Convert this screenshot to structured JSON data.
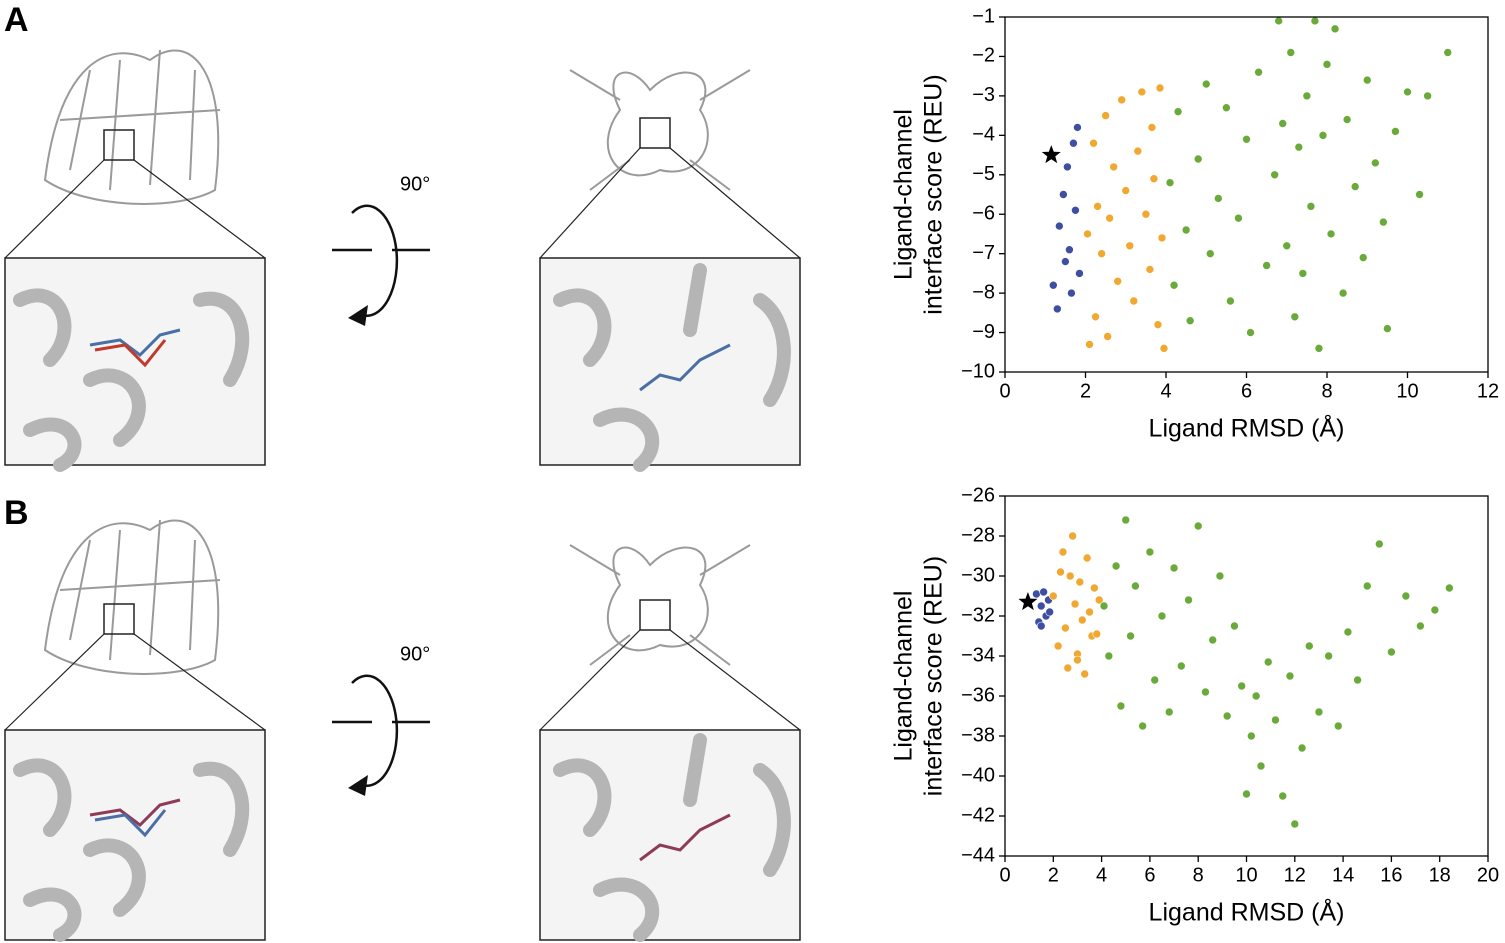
{
  "figure": {
    "panels": [
      {
        "label": "A",
        "rotation": "90°"
      },
      {
        "label": "B",
        "rotation": "90°"
      }
    ]
  },
  "chart_data": [
    {
      "type": "scatter",
      "xlabel": "Ligand RMSD (Å)",
      "ylabel": [
        "Ligand-channel",
        "interface score (REU)"
      ],
      "xlim": [
        0,
        12
      ],
      "ylim": [
        -10,
        -1
      ],
      "xticks": [
        0,
        2,
        4,
        6,
        8,
        10,
        12
      ],
      "yticks": [
        {
          "value": -1,
          "label": "−1"
        },
        {
          "value": -2,
          "label": "−2"
        },
        {
          "value": -3,
          "label": "−3"
        },
        {
          "value": -4,
          "label": "−4"
        },
        {
          "value": -5,
          "label": "−5"
        },
        {
          "value": -6,
          "label": "−6"
        },
        {
          "value": -7,
          "label": "−7"
        },
        {
          "value": -8,
          "label": "−8"
        },
        {
          "value": -9,
          "label": "−9"
        },
        {
          "value": -10,
          "label": "−10"
        }
      ],
      "series": [
        {
          "color": "#3d4ea3",
          "x": [
            1.2,
            1.3,
            1.35,
            1.45,
            1.5,
            1.55,
            1.6,
            1.65,
            1.7,
            1.75,
            1.8,
            1.85
          ],
          "values": [
            -7.8,
            -8.4,
            -6.3,
            -5.5,
            -7.2,
            -4.8,
            -6.9,
            -8.0,
            -4.2,
            -5.9,
            -3.8,
            -7.5
          ]
        },
        {
          "color": "#f0a830",
          "x": [
            2.05,
            2.1,
            2.2,
            2.25,
            2.3,
            2.4,
            2.5,
            2.55,
            2.6,
            2.7,
            2.8,
            2.9,
            3.0,
            3.1,
            3.2,
            3.3,
            3.4,
            3.5,
            3.6,
            3.65,
            3.7,
            3.8,
            3.85,
            3.9,
            3.95
          ],
          "values": [
            -6.5,
            -9.3,
            -4.2,
            -8.6,
            -5.8,
            -7.0,
            -3.5,
            -9.1,
            -6.1,
            -4.8,
            -7.7,
            -3.1,
            -5.4,
            -6.8,
            -8.2,
            -4.4,
            -2.9,
            -6.0,
            -7.4,
            -3.8,
            -5.1,
            -8.8,
            -2.8,
            -6.6,
            -9.4
          ]
        },
        {
          "color": "#6aaa3a",
          "x": [
            4.1,
            4.2,
            4.3,
            4.5,
            4.6,
            4.8,
            5.0,
            5.1,
            5.3,
            5.5,
            5.6,
            5.8,
            6.0,
            6.1,
            6.3,
            6.5,
            6.7,
            6.9,
            7.0,
            7.1,
            7.2,
            7.3,
            7.4,
            7.5,
            7.6,
            7.7,
            7.8,
            7.9,
            8.0,
            8.1,
            8.2,
            8.4,
            8.5,
            8.7,
            8.9,
            9.0,
            9.2,
            9.4,
            9.5,
            9.7,
            10.0,
            10.3,
            10.5,
            11.0,
            6.8
          ],
          "values": [
            -5.2,
            -7.8,
            -3.4,
            -6.4,
            -8.7,
            -4.6,
            -2.7,
            -7.0,
            -5.6,
            -3.3,
            -8.2,
            -6.1,
            -4.1,
            -9.0,
            -2.4,
            -7.3,
            -5.0,
            -3.7,
            -6.8,
            -1.9,
            -8.6,
            -4.3,
            -7.5,
            -3.0,
            -5.8,
            -1.1,
            -9.4,
            -4.0,
            -2.2,
            -6.5,
            -1.3,
            -8.0,
            -3.6,
            -5.3,
            -7.1,
            -2.6,
            -4.7,
            -6.2,
            -8.9,
            -3.9,
            -2.9,
            -5.5,
            -3.0,
            -1.9,
            -1.1
          ]
        },
        {
          "color": "#000000",
          "marker": "star",
          "x": [
            1.15
          ],
          "values": [
            -4.5
          ]
        }
      ]
    },
    {
      "type": "scatter",
      "xlabel": "Ligand RMSD (Å)",
      "ylabel": [
        "Ligand-channel",
        "interface score (REU)"
      ],
      "xlim": [
        0,
        20
      ],
      "ylim": [
        -44,
        -26
      ],
      "xticks": [
        0,
        2,
        4,
        6,
        8,
        10,
        12,
        14,
        16,
        18,
        20
      ],
      "yticks": [
        {
          "value": -26,
          "label": "−26"
        },
        {
          "value": -28,
          "label": "−28"
        },
        {
          "value": -30,
          "label": "−30"
        },
        {
          "value": -32,
          "label": "−32"
        },
        {
          "value": -34,
          "label": "−34"
        },
        {
          "value": -36,
          "label": "−36"
        },
        {
          "value": -38,
          "label": "−38"
        },
        {
          "value": -40,
          "label": "−40"
        },
        {
          "value": -42,
          "label": "−42"
        },
        {
          "value": -44,
          "label": "−44"
        }
      ],
      "series": [
        {
          "color": "#3d4ea3",
          "x": [
            1.3,
            1.4,
            1.5,
            1.6,
            1.7,
            1.8,
            1.85,
            1.5
          ],
          "values": [
            -30.9,
            -32.3,
            -31.5,
            -30.8,
            -32.0,
            -31.2,
            -31.8,
            -32.5
          ]
        },
        {
          "color": "#f0a830",
          "x": [
            2.0,
            2.2,
            2.3,
            2.5,
            2.6,
            2.8,
            2.9,
            3.0,
            3.1,
            3.2,
            3.3,
            3.4,
            3.5,
            3.6,
            3.7,
            3.8,
            3.9,
            2.4,
            2.7,
            3.0
          ],
          "values": [
            -31.0,
            -33.5,
            -29.8,
            -32.6,
            -34.6,
            -28.0,
            -31.4,
            -33.9,
            -30.3,
            -32.2,
            -34.9,
            -29.1,
            -31.8,
            -33.0,
            -30.6,
            -32.9,
            -31.2,
            -28.8,
            -30.0,
            -34.2
          ]
        },
        {
          "color": "#6aaa3a",
          "x": [
            4.1,
            4.3,
            4.6,
            4.8,
            5.0,
            5.2,
            5.4,
            5.7,
            6.0,
            6.2,
            6.5,
            6.8,
            7.0,
            7.3,
            7.6,
            8.0,
            8.3,
            8.6,
            8.9,
            9.2,
            9.5,
            9.8,
            10.0,
            10.2,
            10.4,
            10.6,
            10.9,
            11.2,
            11.5,
            11.8,
            12.0,
            12.3,
            12.6,
            13.0,
            13.4,
            13.8,
            14.2,
            14.6,
            15.0,
            15.5,
            16.0,
            16.6,
            17.2,
            17.8,
            18.4
          ],
          "values": [
            -31.5,
            -34.0,
            -29.5,
            -36.5,
            -27.2,
            -33.0,
            -30.5,
            -37.5,
            -28.8,
            -35.2,
            -32.0,
            -36.8,
            -29.6,
            -34.5,
            -31.2,
            -27.5,
            -35.8,
            -33.2,
            -30.0,
            -37.0,
            -32.5,
            -35.5,
            -40.9,
            -38.0,
            -36.0,
            -39.5,
            -34.3,
            -37.2,
            -41.0,
            -35.0,
            -42.4,
            -38.6,
            -33.5,
            -36.8,
            -34.0,
            -37.5,
            -32.8,
            -35.2,
            -30.5,
            -28.4,
            -33.8,
            -31.0,
            -32.5,
            -31.7,
            -30.6
          ]
        },
        {
          "color": "#000000",
          "marker": "star",
          "x": [
            0.95
          ],
          "values": [
            -31.3
          ]
        }
      ]
    }
  ]
}
